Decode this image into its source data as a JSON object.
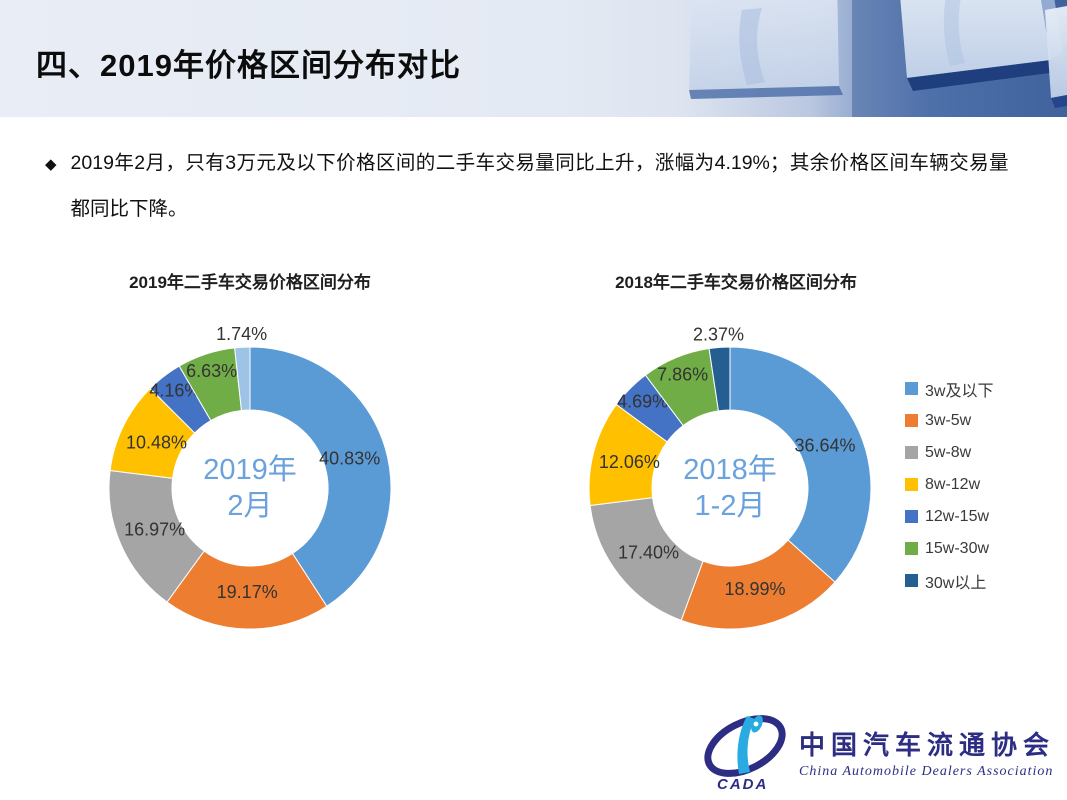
{
  "slide": {
    "title": "四、2019年价格区间分布对比",
    "bullet_icon": "◆",
    "bullet_text": "2019年2月，只有3万元及以下价格区间的二手车交易量同比上升，涨幅为4.19%；其余价格区间车辆交易量都同比下降。"
  },
  "chart_data": [
    {
      "type": "pie",
      "subtype": "donut",
      "title": "2019年二手车交易价格区间分布",
      "center_line1": "2019年",
      "center_line2": "2月",
      "categories": [
        "3w及以下",
        "3w-5w",
        "5w-8w",
        "8w-12w",
        "12w-15w",
        "15w-30w",
        "30w以上"
      ],
      "values": [
        40.83,
        19.17,
        16.97,
        10.48,
        4.16,
        6.63,
        1.74
      ],
      "labels": [
        "40.83%",
        "19.17%",
        "16.97%",
        "10.48%",
        "4.16%",
        "6.63%",
        "1.74%"
      ],
      "colors": [
        "#5B9BD5",
        "#ED7D31",
        "#A5A5A5",
        "#FFC000",
        "#4472C4",
        "#70AD47",
        "#9DC3E6"
      ],
      "start_angle_deg": 0,
      "direction": "clockwise",
      "legend_position": "none"
    },
    {
      "type": "pie",
      "subtype": "donut",
      "title": "2018年二手车交易价格区间分布",
      "center_line1": "2018年",
      "center_line2": "1-2月",
      "categories": [
        "3w及以下",
        "3w-5w",
        "5w-8w",
        "8w-12w",
        "12w-15w",
        "15w-30w",
        "30w以上"
      ],
      "values": [
        36.64,
        18.99,
        17.4,
        12.06,
        4.69,
        7.86,
        2.37
      ],
      "labels": [
        "36.64%",
        "18.99%",
        "17.40%",
        "12.06%",
        "4.69%",
        "7.86%",
        "2.37%"
      ],
      "colors": [
        "#5B9BD5",
        "#ED7D31",
        "#A5A5A5",
        "#FFC000",
        "#4472C4",
        "#70AD47",
        "#255E91"
      ],
      "start_angle_deg": 0,
      "direction": "clockwise",
      "legend_position": "right"
    }
  ],
  "legend": {
    "items": [
      {
        "label": "3w及以下",
        "color": "#5B9BD5"
      },
      {
        "label": "3w-5w",
        "color": "#ED7D31"
      },
      {
        "label": "5w-8w",
        "color": "#A5A5A5"
      },
      {
        "label": "8w-12w",
        "color": "#FFC000"
      },
      {
        "label": "12w-15w",
        "color": "#4472C4"
      },
      {
        "label": "15w-30w",
        "color": "#70AD47"
      },
      {
        "label": "30w以上",
        "color": "#255E91"
      }
    ]
  },
  "footer_logo": {
    "acronym": "CADA",
    "name_cn": "中国汽车流通协会",
    "name_en": "China Automobile Dealers Association"
  },
  "colors": {
    "header_left": "#e9edf5",
    "header_right": "#3c5f9b",
    "center_label_blue": "#6ba1dc",
    "text_black": "#111111"
  }
}
